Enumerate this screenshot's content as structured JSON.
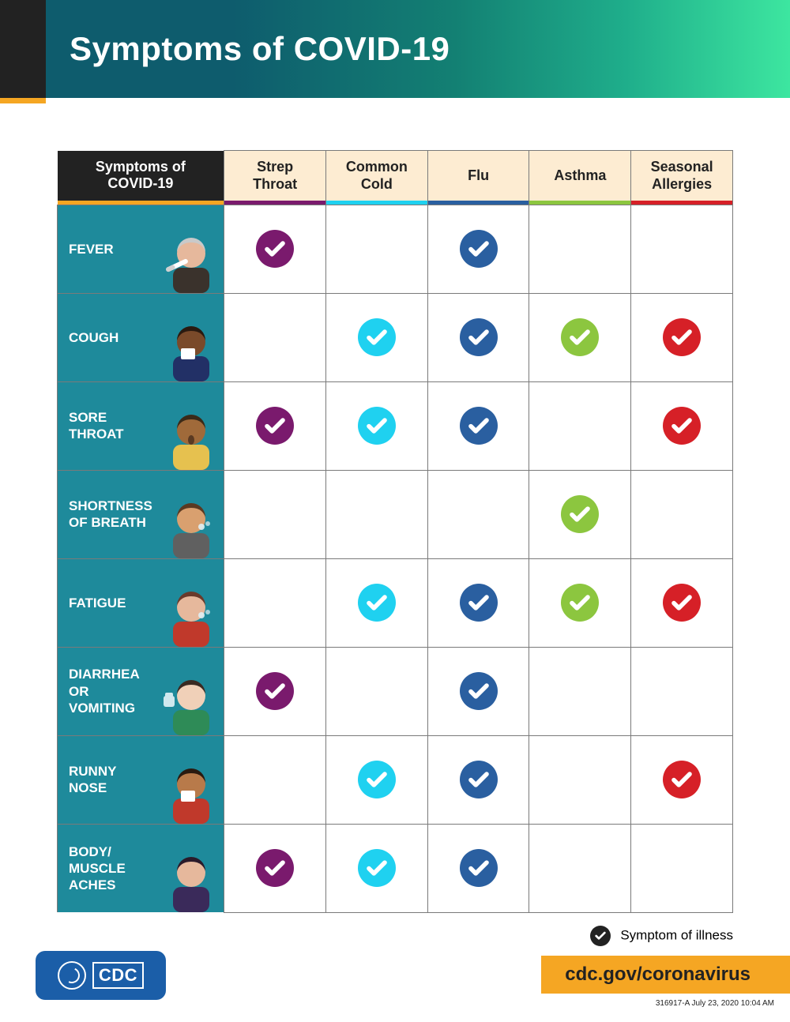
{
  "header": {
    "title": "Symptoms of COVID-19"
  },
  "table": {
    "first_column_header": "Symptoms of COVID-19",
    "first_column_underline": "#f5a623",
    "columns": [
      {
        "label": "Strep Throat",
        "color": "#7a1a6d",
        "underline": "#7a1a6d"
      },
      {
        "label": "Common Cold",
        "color": "#1fd1f0",
        "underline": "#1fd1f0"
      },
      {
        "label": "Flu",
        "color": "#2a5fa0",
        "underline": "#2a5fa0"
      },
      {
        "label": "Asthma",
        "color": "#8cc63f",
        "underline": "#8cc63f"
      },
      {
        "label": "Seasonal Allergies",
        "color": "#d62027",
        "underline": "#d62027"
      }
    ],
    "rows": [
      {
        "label": "FEVER",
        "illus": "fever",
        "checks": [
          true,
          false,
          true,
          false,
          false
        ]
      },
      {
        "label": "COUGH",
        "illus": "cough",
        "checks": [
          false,
          true,
          true,
          true,
          true
        ]
      },
      {
        "label": "SORE THROAT",
        "illus": "sore-throat",
        "checks": [
          true,
          true,
          true,
          false,
          true
        ]
      },
      {
        "label": "SHORTNESS OF BREATH",
        "illus": "breath",
        "checks": [
          false,
          false,
          false,
          true,
          false
        ]
      },
      {
        "label": "FATIGUE",
        "illus": "fatigue",
        "checks": [
          false,
          true,
          true,
          true,
          true
        ]
      },
      {
        "label": "DIARRHEA OR VOMITING",
        "illus": "vomiting",
        "checks": [
          true,
          false,
          true,
          false,
          false
        ]
      },
      {
        "label": "RUNNY NOSE",
        "illus": "runny-nose",
        "checks": [
          false,
          true,
          true,
          false,
          true
        ]
      },
      {
        "label": "BODY/ MUSCLE ACHES",
        "illus": "aches",
        "checks": [
          true,
          true,
          true,
          false,
          false
        ]
      }
    ]
  },
  "legend": {
    "label": "Symptom of illness",
    "color": "#222222"
  },
  "footer": {
    "cdc": "CDC",
    "url": "cdc.gov/coronavirus",
    "docid": "316917-A July 23, 2020 10:04 AM"
  },
  "illustrations": {
    "fever": {
      "skin": "#e6b89c",
      "hair": "#c9c9c9",
      "shirt": "#3a322c"
    },
    "cough": {
      "skin": "#7a4a2a",
      "hair": "#2a1a10",
      "shirt": "#223066"
    },
    "sore-throat": {
      "skin": "#a06a3a",
      "hair": "#3a2a18",
      "shirt": "#e6c14f"
    },
    "breath": {
      "skin": "#d9a06f",
      "hair": "#5a3a22",
      "shirt": "#606060"
    },
    "fatigue": {
      "skin": "#e6b89c",
      "hair": "#6a3a2a",
      "shirt": "#c0392b"
    },
    "vomiting": {
      "skin": "#f0d0b8",
      "hair": "#3a2a22",
      "shirt": "#2e8b57"
    },
    "runny-nose": {
      "skin": "#b87a4a",
      "hair": "#2a1a10",
      "shirt": "#c0392b"
    },
    "aches": {
      "skin": "#e6b89c",
      "hair": "#2a1a2a",
      "shirt": "#3a2a5a"
    }
  }
}
